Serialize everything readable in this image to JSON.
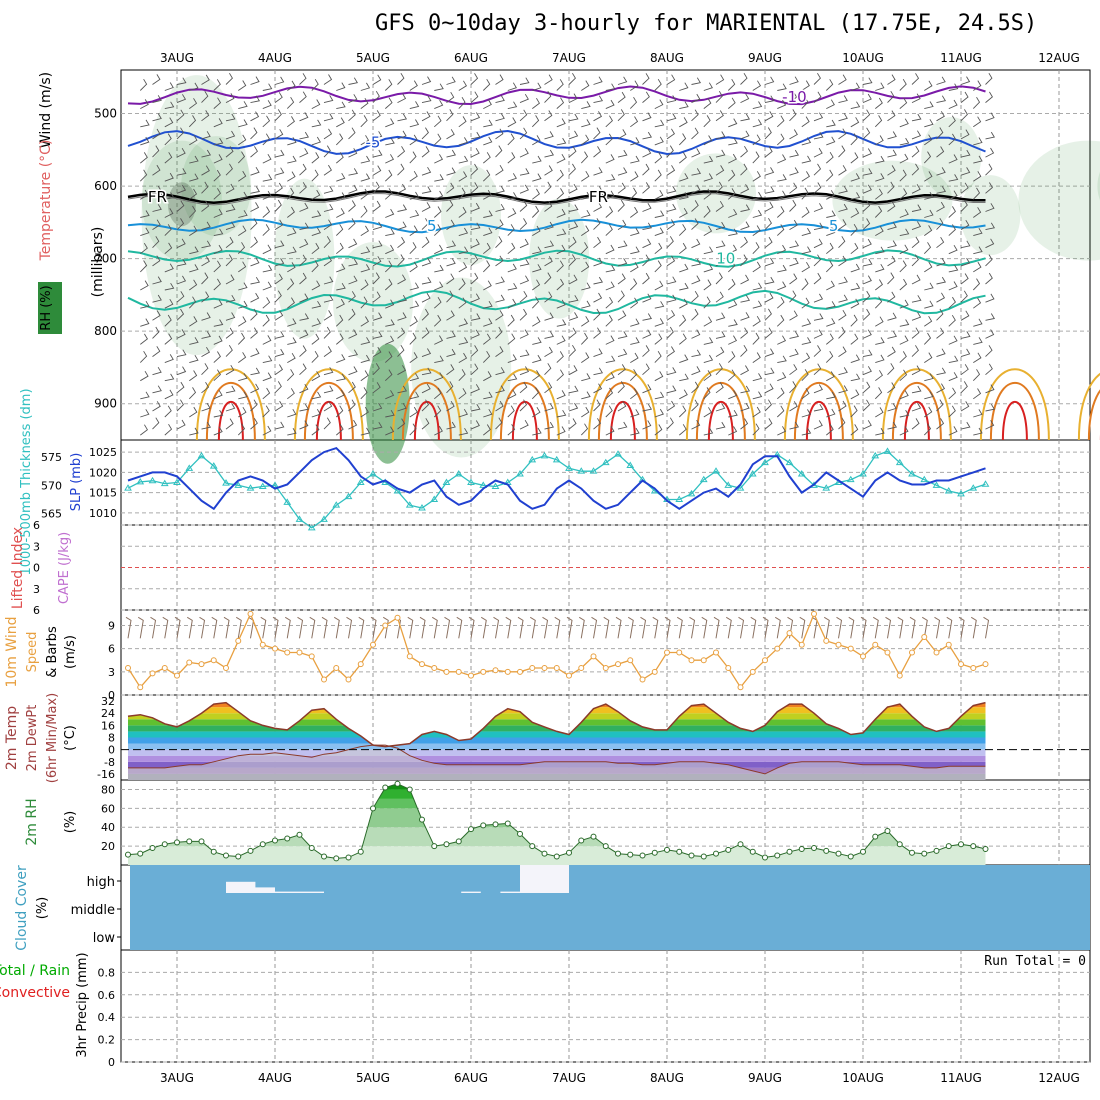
{
  "title": "GFS 0~10day 3-hourly for MARIENTAL (17.75E, 24.5S)",
  "dates": [
    "3AUG",
    "4AUG",
    "5AUG",
    "6AUG",
    "7AUG",
    "8AUG",
    "9AUG",
    "10AUG",
    "11AUG",
    "12AUG"
  ],
  "colors": {
    "wind_barb": "#555555",
    "temp_warm_1": "#e8b030",
    "temp_warm_2": "#e07a20",
    "temp_hot": "#d82020",
    "temp_cool": "#20b8a0",
    "temp_cold_1": "#1890d8",
    "temp_cold_2": "#2050d0",
    "temp_cold_3": "#7a1aa8",
    "freezing": "#000000",
    "rh": "#2e8b3a",
    "thickness": "#30c0c0",
    "slp": "#2040d0",
    "lifted_index": "#e05050",
    "cape": "#c070d0",
    "wind_speed": "#e8a040",
    "cloud": "#6aaed6",
    "precip_total": "#00aa00",
    "precip_convective": "#e02020"
  },
  "chart_data": [
    {
      "type": "heatmap",
      "id": "upper_air",
      "ylabel_left": [
        "Wind (m/s)",
        "Temperature (°C)",
        "RH (%)"
      ],
      "ylabel_right": "(millibars)",
      "ylim": [
        440,
        950
      ],
      "yticks": [
        500,
        600,
        700,
        800,
        900
      ],
      "contour_labels": [
        "-10",
        "-5",
        "FR",
        "5",
        "10",
        "10",
        "10"
      ],
      "isotherm_levels_mb": [
        {
          "label": "-10",
          "mb": 475
        },
        {
          "label": "-5",
          "mb": 540
        },
        {
          "label": "FR",
          "mb": 615
        },
        {
          "label": "5",
          "mb": 655
        },
        {
          "label": "10",
          "mb": 700
        }
      ]
    },
    {
      "type": "line",
      "id": "thickness_slp",
      "ylabel_left": "1000-500mb Thickness (dm)",
      "ylabel_right": "SLP (mb)",
      "yticks_left": [
        565,
        570,
        575
      ],
      "yticks_right": [
        1010,
        1015,
        1020,
        1025
      ],
      "ylim_left": [
        563,
        578
      ],
      "ylim_right": [
        1007,
        1028
      ],
      "series": [
        {
          "name": "1000-500mb Thickness (dm)",
          "axis": "left",
          "values": [
            569.5,
            570.6,
            570.8,
            570.3,
            570.5,
            573.0,
            575.2,
            573.4,
            570.4,
            570.0,
            569.5,
            569.8,
            570.0,
            567.0,
            564.0,
            562.5,
            564.0,
            566.5,
            568.0,
            570.5,
            572.0,
            570.5,
            569.0,
            566.5,
            566.0,
            567.5,
            570.5,
            572.0,
            570.5,
            570.0,
            569.8,
            570.5,
            572.0,
            574.5,
            575.2,
            574.5,
            573.0,
            572.5,
            572.5,
            574.0,
            575.5,
            573.5,
            571.0,
            569.0,
            567.5,
            567.5,
            568.5,
            571.0,
            572.5,
            570.0,
            569.5,
            572.0,
            574.0,
            575.4,
            574.0,
            572.0,
            570.0,
            569.5,
            570.5,
            571.0,
            572.0,
            575.2,
            576.0,
            574.0,
            572.0,
            571.0,
            570.0,
            569.0,
            568.5,
            569.5,
            570.2
          ]
        },
        {
          "name": "SLP (mb)",
          "axis": "right",
          "values": [
            1018,
            1019,
            1020,
            1020,
            1019,
            1016,
            1013,
            1011,
            1015,
            1018,
            1019,
            1018,
            1016,
            1017,
            1020,
            1023,
            1025,
            1026,
            1023,
            1019,
            1017,
            1018,
            1016,
            1015,
            1017,
            1018,
            1014,
            1012,
            1013,
            1016,
            1018,
            1017,
            1013,
            1011,
            1012,
            1016,
            1018,
            1016,
            1013,
            1011,
            1012,
            1015,
            1018,
            1016,
            1013,
            1011,
            1013,
            1015,
            1016,
            1014,
            1017,
            1022,
            1024,
            1024,
            1019,
            1015,
            1017,
            1020,
            1018,
            1016,
            1014,
            1018,
            1020,
            1018,
            1017,
            1017,
            1018,
            1018,
            1019,
            1020,
            1021
          ]
        }
      ]
    },
    {
      "type": "line",
      "id": "lifted_index_cape",
      "ylabel_left": "Lifted Index",
      "ylabel_right": "CAPE (J/kg)",
      "yticks": [
        -6,
        -3,
        0,
        3,
        6
      ],
      "tick_labels": [
        "6",
        "3",
        "0",
        "3",
        "6"
      ],
      "ylim": [
        -6,
        6
      ],
      "series": [
        {
          "name": "Lifted Index zero line",
          "values": [
            0
          ]
        }
      ]
    },
    {
      "type": "line",
      "id": "wind10m",
      "ylabel_left": [
        "10m Wind",
        "Speed",
        "& Barbs"
      ],
      "ylabel_right": "(m/s)",
      "yticks": [
        0,
        3,
        6,
        9
      ],
      "ylim": [
        0,
        11
      ],
      "series": [
        {
          "name": "10m Wind Speed",
          "values": [
            3.5,
            1.0,
            2.8,
            3.5,
            2.5,
            4.2,
            4.0,
            4.5,
            3.5,
            7.0,
            10.5,
            6.5,
            6.0,
            5.5,
            5.5,
            5.0,
            2.0,
            3.5,
            2.0,
            4.0,
            6.5,
            9.0,
            10.0,
            5.0,
            4.0,
            3.5,
            3.0,
            3.0,
            2.5,
            3.0,
            3.2,
            3.0,
            3.0,
            3.5,
            3.5,
            3.5,
            2.5,
            3.5,
            5.0,
            3.5,
            4.0,
            4.5,
            2.0,
            3.0,
            5.5,
            5.5,
            4.5,
            4.5,
            5.5,
            3.5,
            1.0,
            3.0,
            4.5,
            6.0,
            8.0,
            6.5,
            10.5,
            7.0,
            6.5,
            6.0,
            5.0,
            6.5,
            5.5,
            2.5,
            5.5,
            7.5,
            5.5,
            6.5,
            4.0,
            3.5,
            4.0
          ]
        }
      ]
    },
    {
      "type": "area",
      "id": "temp2m",
      "ylabel_left": [
        "2m Temp",
        "2m DewPt",
        "(6hr Min/Max)"
      ],
      "ylabel_right": "(°C)",
      "yticks": [
        -16,
        -8,
        0,
        8,
        16,
        24,
        32
      ],
      "ylim": [
        -20,
        36
      ],
      "series": [
        {
          "name": "2m Temp",
          "values": [
            22,
            23,
            21,
            17,
            15,
            19,
            24,
            30,
            31,
            25,
            19,
            16,
            14,
            13,
            19,
            26,
            27,
            20,
            14,
            9,
            3,
            2,
            3,
            4,
            10,
            12,
            10,
            6,
            7,
            14,
            22,
            27,
            25,
            18,
            15,
            12,
            10,
            18,
            27,
            30,
            25,
            19,
            15,
            13,
            13,
            22,
            29,
            30,
            24,
            18,
            14,
            12,
            16,
            25,
            30,
            30,
            24,
            17,
            14,
            10,
            11,
            20,
            28,
            30,
            22,
            15,
            12,
            14,
            22,
            29,
            31
          ]
        },
        {
          "name": "2m DewPt",
          "values": [
            -12,
            -12,
            -12,
            -12,
            -11,
            -10,
            -10,
            -8,
            -6,
            -4,
            -3,
            -3,
            -2,
            -3,
            -4,
            -5,
            -3,
            -2,
            0,
            2,
            3,
            3,
            1,
            -4,
            -7,
            -9,
            -10,
            -10,
            -10,
            -10,
            -10,
            -10,
            -10,
            -9,
            -8,
            -8,
            -8,
            -8,
            -8,
            -8,
            -9,
            -9,
            -10,
            -10,
            -9,
            -8,
            -8,
            -8,
            -9,
            -10,
            -12,
            -14,
            -16,
            -12,
            -9,
            -8,
            -8,
            -8,
            -8,
            -9,
            -10,
            -10,
            -10,
            -10,
            -11,
            -12,
            -12,
            -11,
            -11,
            -11,
            -11
          ]
        }
      ]
    },
    {
      "type": "area",
      "id": "rh2m",
      "ylabel_left": "2m RH",
      "ylabel_right": "(%)",
      "yticks": [
        20,
        40,
        60,
        80
      ],
      "ylim": [
        0,
        90
      ],
      "series": [
        {
          "name": "2m RH",
          "values": [
            11,
            12,
            18,
            22,
            24,
            25,
            25,
            14,
            10,
            9,
            15,
            22,
            26,
            28,
            32,
            18,
            9,
            7,
            8,
            14,
            60,
            82,
            86,
            80,
            48,
            20,
            22,
            25,
            38,
            42,
            43,
            44,
            33,
            20,
            12,
            9,
            13,
            26,
            30,
            20,
            12,
            11,
            10,
            13,
            16,
            14,
            10,
            9,
            12,
            16,
            22,
            14,
            8,
            10,
            14,
            17,
            18,
            15,
            12,
            9,
            14,
            30,
            36,
            22,
            13,
            12,
            15,
            20,
            22,
            20,
            17
          ]
        }
      ]
    },
    {
      "type": "bar",
      "id": "cloud",
      "ylabel_left": "Cloud Cover",
      "ylabel_right": "(%)",
      "yticks_labels": [
        "high",
        "middle",
        "low"
      ],
      "series": [
        {
          "name": "high cloud blocks",
          "values": [
            {
              "start": 1.0,
              "end": 1.5,
              "level": "high",
              "height": 0.2
            },
            {
              "start": 1.0,
              "end": 1.3,
              "level": "high",
              "height": 0.4
            },
            {
              "start": 1.5,
              "end": 2.0,
              "level": "high",
              "height": 0.05
            },
            {
              "start": 3.4,
              "end": 3.6,
              "level": "high",
              "height": 0.05
            },
            {
              "start": 3.8,
              "end": 4.0,
              "level": "high",
              "height": 0.05
            },
            {
              "start": 4.0,
              "end": 4.5,
              "level": "high",
              "height": 1.0
            }
          ]
        }
      ]
    },
    {
      "type": "bar",
      "id": "precip",
      "ylabel_left": [
        "Total / Rain",
        "Convective"
      ],
      "ylabel_right": "3hr Precip (mm)",
      "yticks": [
        0,
        0.2,
        0.4,
        0.6,
        0.8
      ],
      "ylim": [
        0,
        1.0
      ],
      "run_total": "Run Total = 0",
      "series": [
        {
          "name": "Total",
          "values": []
        }
      ]
    }
  ]
}
